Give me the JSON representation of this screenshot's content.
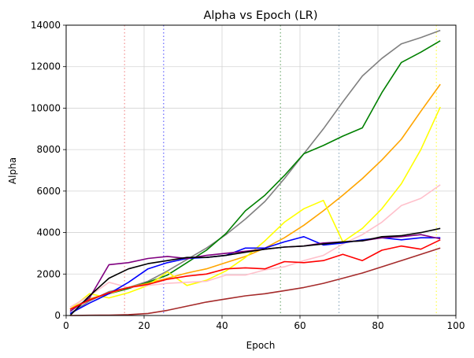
{
  "chart_data": {
    "type": "line",
    "title": "Alpha vs Epoch (LR)",
    "xlabel": "Epoch",
    "ylabel": "Alpha",
    "xlim": [
      0,
      100
    ],
    "ylim": [
      0,
      14000
    ],
    "xticks": [
      0,
      20,
      40,
      60,
      80,
      100
    ],
    "yticks": [
      0,
      2000,
      4000,
      6000,
      8000,
      10000,
      12000,
      14000
    ],
    "grid": true,
    "legend": "none",
    "vlines": [
      {
        "x": 15,
        "color": "#f4a6a6"
      },
      {
        "x": 25,
        "color": "#8080ff"
      },
      {
        "x": 55,
        "color": "#8fbc8f"
      },
      {
        "x": 70,
        "color": "#a0b8c8"
      },
      {
        "x": 95,
        "color": "#ffff66"
      }
    ],
    "series": [
      {
        "color": "#808080",
        "x": [
          1,
          6,
          11,
          16,
          21,
          26,
          31,
          36,
          41,
          46,
          51,
          56,
          61,
          66,
          71,
          76,
          81,
          86,
          91,
          96
        ],
        "y": [
          100,
          700,
          1150,
          1350,
          1650,
          2150,
          2700,
          3250,
          3900,
          4650,
          5500,
          6600,
          7800,
          9000,
          10300,
          11550,
          12400,
          13100,
          13400,
          13750
        ]
      },
      {
        "color": "#008000",
        "x": [
          1,
          6,
          11,
          16,
          21,
          26,
          31,
          36,
          41,
          46,
          51,
          56,
          61,
          66,
          71,
          76,
          81,
          86,
          91,
          96
        ],
        "y": [
          300,
          800,
          1050,
          1300,
          1600,
          1950,
          2550,
          3150,
          3950,
          5050,
          5800,
          6750,
          7800,
          8200,
          8650,
          9050,
          10750,
          12200,
          12700,
          13250
        ]
      },
      {
        "color": "#ffa500",
        "x": [
          1,
          6,
          11,
          16,
          21,
          26,
          31,
          36,
          41,
          46,
          51,
          56,
          61,
          66,
          71,
          76,
          81,
          86,
          91,
          96
        ],
        "y": [
          300,
          800,
          1050,
          1350,
          1550,
          1800,
          2050,
          2250,
          2550,
          2850,
          3250,
          3750,
          4350,
          5050,
          5800,
          6600,
          7500,
          8500,
          9850,
          11150
        ]
      },
      {
        "color": "#ffff00",
        "x": [
          1,
          6,
          11,
          16,
          21,
          26,
          31,
          36,
          41,
          46,
          51,
          56,
          61,
          66,
          71,
          76,
          81,
          86,
          91,
          96
        ],
        "y": [
          300,
          1050,
          850,
          1100,
          1450,
          2100,
          1450,
          1700,
          2150,
          2800,
          3600,
          4500,
          5150,
          5550,
          3550,
          4200,
          5150,
          6350,
          8000,
          10050
        ]
      },
      {
        "color": "#ffc0cb",
        "x": [
          1,
          6,
          11,
          16,
          21,
          26,
          31,
          36,
          41,
          46,
          51,
          56,
          61,
          66,
          71,
          76,
          81,
          86,
          91,
          96
        ],
        "y": [
          400,
          950,
          1600,
          1350,
          1450,
          1550,
          1600,
          1650,
          1950,
          1950,
          2200,
          2350,
          2650,
          2900,
          3450,
          3900,
          4500,
          5300,
          5650,
          6300
        ]
      },
      {
        "color": "#0000ff",
        "x": [
          1,
          6,
          11,
          16,
          21,
          26,
          31,
          36,
          41,
          46,
          51,
          56,
          61,
          66,
          71,
          76,
          81,
          86,
          91,
          96
        ],
        "y": [
          100,
          600,
          1050,
          1600,
          2250,
          2550,
          2750,
          2800,
          2900,
          3250,
          3250,
          3550,
          3800,
          3400,
          3500,
          3650,
          3750,
          3650,
          3750,
          3750
        ]
      },
      {
        "color": "#800080",
        "x": [
          1,
          6,
          11,
          16,
          21,
          26,
          31,
          36,
          41,
          46,
          51,
          56,
          61,
          66,
          71,
          76,
          81,
          86,
          91,
          96
        ],
        "y": [
          200,
          850,
          2450,
          2550,
          2750,
          2850,
          2750,
          2900,
          3000,
          3100,
          3200,
          3300,
          3350,
          3500,
          3550,
          3600,
          3750,
          3800,
          3900,
          3700
        ]
      },
      {
        "color": "#000000",
        "x": [
          1,
          6,
          11,
          16,
          21,
          26,
          31,
          36,
          41,
          46,
          51,
          56,
          61,
          66,
          71,
          76,
          81,
          86,
          91,
          96
        ],
        "y": [
          0,
          950,
          1800,
          2250,
          2500,
          2650,
          2800,
          2800,
          2900,
          3050,
          3200,
          3300,
          3350,
          3450,
          3550,
          3600,
          3800,
          3850,
          4000,
          4200
        ]
      },
      {
        "color": "#ff0000",
        "x": [
          1,
          6,
          11,
          16,
          21,
          26,
          31,
          36,
          41,
          46,
          51,
          56,
          61,
          66,
          71,
          76,
          81,
          86,
          91,
          96
        ],
        "y": [
          300,
          750,
          1100,
          1350,
          1500,
          1750,
          1900,
          2000,
          2250,
          2300,
          2250,
          2600,
          2550,
          2650,
          2950,
          2650,
          3150,
          3350,
          3200,
          3650
        ]
      },
      {
        "color": "#a52a2a",
        "x": [
          1,
          6,
          11,
          16,
          21,
          26,
          31,
          36,
          41,
          46,
          51,
          56,
          61,
          66,
          71,
          76,
          81,
          86,
          91,
          96
        ],
        "y": [
          0,
          10,
          20,
          40,
          100,
          250,
          450,
          650,
          800,
          950,
          1050,
          1200,
          1350,
          1550,
          1800,
          2050,
          2350,
          2650,
          2950,
          3250
        ]
      }
    ]
  }
}
